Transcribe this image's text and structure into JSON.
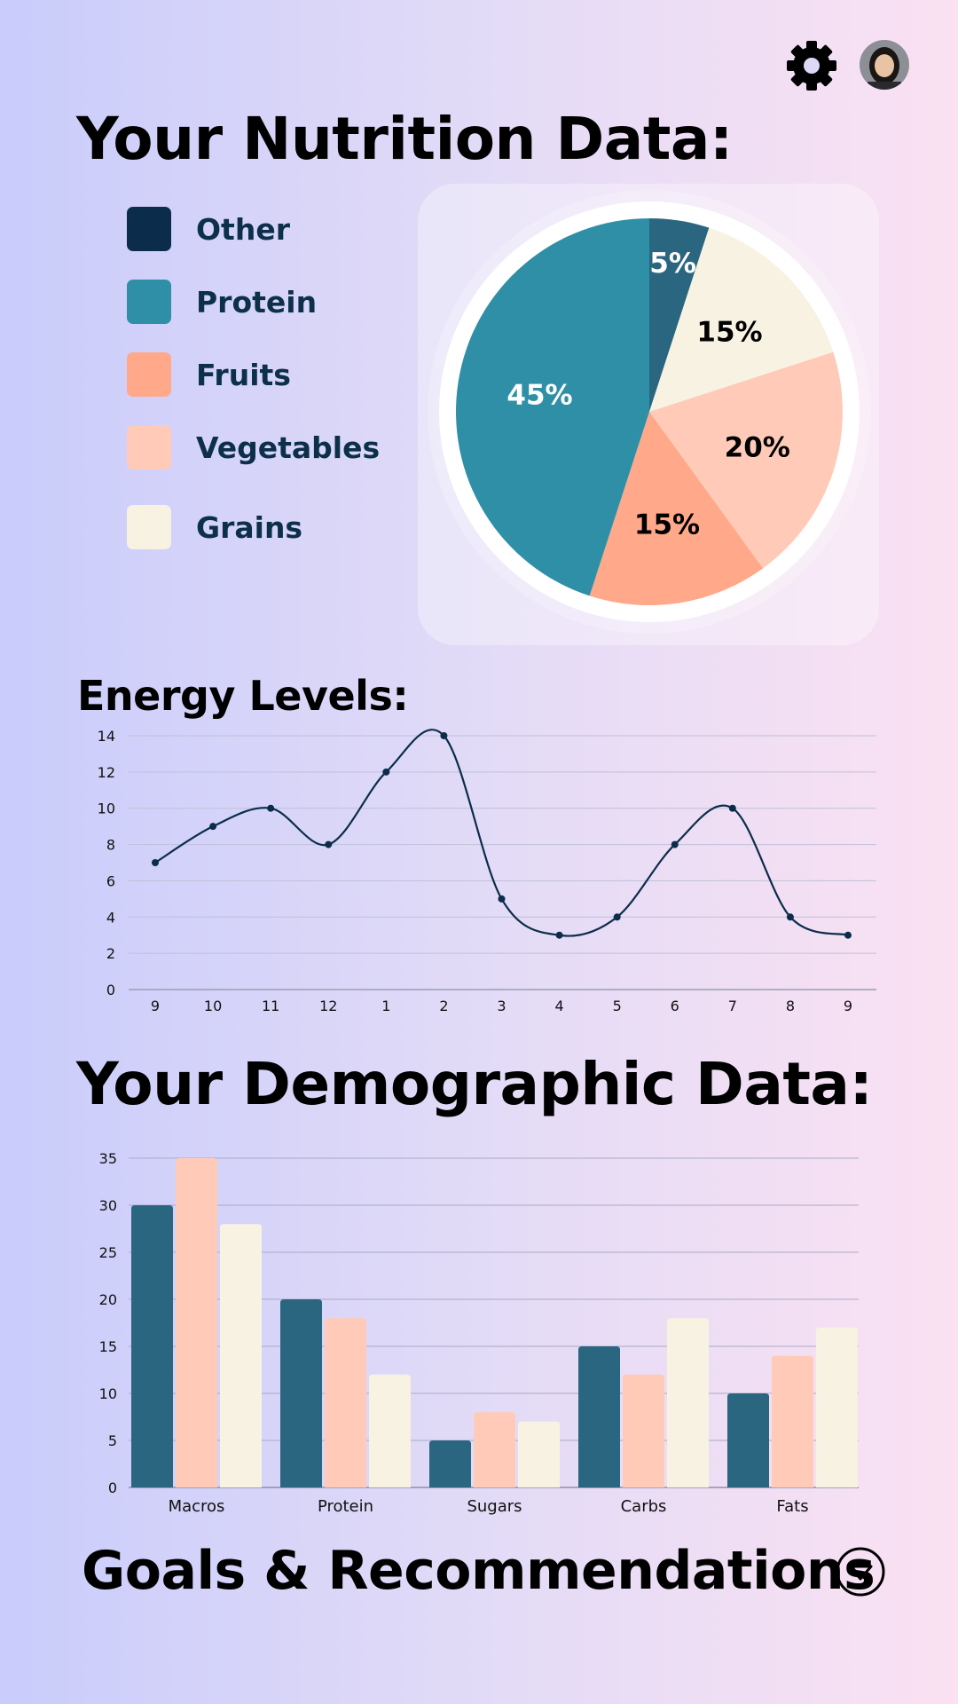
{
  "header": {
    "settings_icon": "gear-icon",
    "avatar_icon": "user-avatar"
  },
  "nutrition": {
    "title": "Your Nutrition Data:",
    "legend": [
      {
        "label": "Other",
        "color": "#0b2d4b"
      },
      {
        "label": "Protein",
        "color": "#2f8fa7"
      },
      {
        "label": "Fruits",
        "color": "#ffa88a"
      },
      {
        "label": "Vegetables",
        "color": "#ffcbb8"
      },
      {
        "label": "Grains",
        "color": "#f8f2e3"
      }
    ]
  },
  "energy": {
    "title": "Energy Levels:"
  },
  "demographic": {
    "title": "Your Demographic Data:"
  },
  "goals": {
    "title": "Goals & Recommendations",
    "expand_icon": "chevron-down-icon"
  },
  "colors": {
    "dark_teal": "#2b6680",
    "peach": "#ffcbb8",
    "cream": "#f8f2e3",
    "line": "#0b2d4b"
  },
  "chart_data": [
    {
      "type": "pie",
      "categories": [
        "Other",
        "Grains",
        "Vegetables",
        "Fruits",
        "Protein"
      ],
      "values": [
        5,
        15,
        20,
        15,
        45
      ],
      "labels": [
        "5%",
        "15%",
        "20%",
        "15%",
        "45%"
      ],
      "colors": [
        "#2b6680",
        "#f8f2e3",
        "#ffcbb8",
        "#ffa88a",
        "#2f8fa7"
      ],
      "label_colors": [
        "#ffffff",
        "#000000",
        "#000000",
        "#000000",
        "#ffffff"
      ]
    },
    {
      "type": "line",
      "x": [
        "9",
        "10",
        "11",
        "12",
        "1",
        "2",
        "3",
        "4",
        "5",
        "6",
        "7",
        "8",
        "9"
      ],
      "values": [
        7,
        9,
        10,
        8,
        12,
        14,
        5,
        3,
        4,
        8,
        10,
        4,
        3
      ],
      "ylim": [
        0,
        14
      ],
      "yticks": [
        0,
        2,
        4,
        6,
        8,
        10,
        12,
        14
      ],
      "grid": true
    },
    {
      "type": "bar",
      "categories": [
        "Macros",
        "Protein",
        "Sugars",
        "Carbs",
        "Fats"
      ],
      "series": [
        {
          "values": [
            30,
            20,
            5,
            15,
            10
          ],
          "color": "#2b6680"
        },
        {
          "values": [
            35,
            18,
            8,
            12,
            14
          ],
          "color": "#ffcbb8"
        },
        {
          "values": [
            28,
            12,
            7,
            18,
            17
          ],
          "color": "#f8f2e3"
        }
      ],
      "ylim": [
        0,
        35
      ],
      "yticks": [
        0,
        5,
        10,
        15,
        20,
        25,
        30,
        35
      ],
      "grid": true
    }
  ]
}
